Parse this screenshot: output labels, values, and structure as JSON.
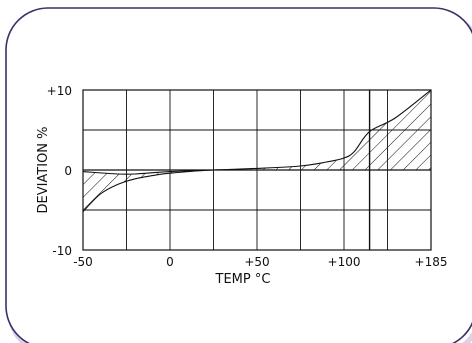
{
  "chart_data": {
    "type": "area",
    "title": "",
    "xlabel": "TEMP °C",
    "ylabel": "DEVIATION %",
    "x_tick_labels": [
      "-50",
      "0",
      "+50",
      "+100",
      "+185"
    ],
    "y_tick_labels": [
      "+10",
      "0",
      "-10"
    ],
    "xlim": [
      -50,
      185
    ],
    "ylim": [
      -10,
      10
    ],
    "grid": true,
    "reference_x": 125,
    "series": [
      {
        "band": "upper",
        "x": [
          -50,
          -30,
          -20,
          0,
          25,
          50,
          75,
          90,
          100,
          110,
          125,
          150,
          185
        ],
        "y": [
          -0.2,
          -0.5,
          -0.5,
          -0.2,
          0,
          0.2,
          0.5,
          1,
          1.5,
          2.3,
          4.8,
          6.5,
          10
        ]
      },
      {
        "band": "lower",
        "x": [
          -50,
          -40,
          -30,
          -20,
          -10,
          0,
          25,
          50,
          75,
          100,
          125,
          185
        ],
        "y": [
          -5.2,
          -3,
          -1.8,
          -1.1,
          -0.7,
          -0.4,
          0,
          0,
          0,
          0,
          0,
          0
        ]
      }
    ],
    "colors": {
      "ink": "#111111",
      "frame": "#3a2f6b",
      "shadow": "#d8d2ea"
    }
  }
}
